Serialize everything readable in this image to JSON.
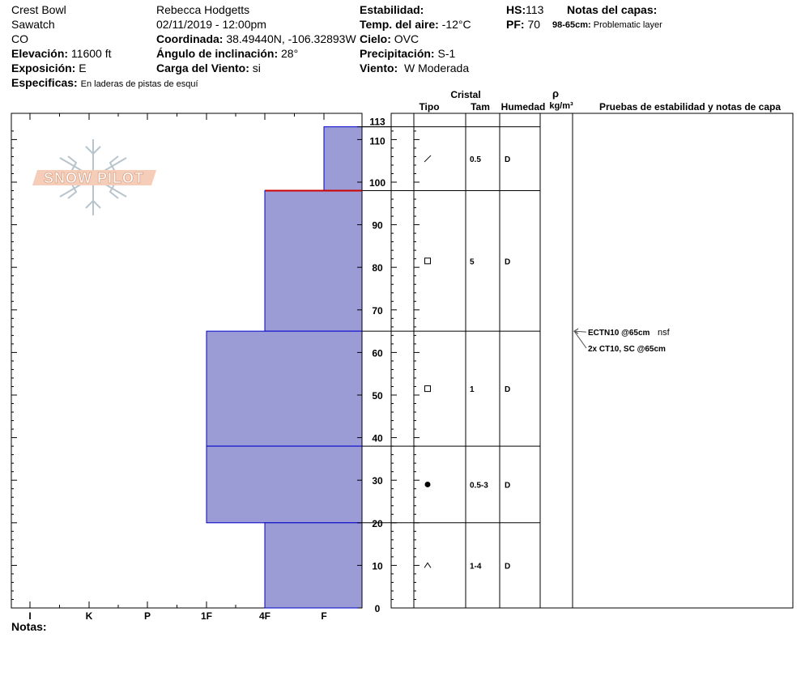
{
  "site": {
    "location": "Crest Bowl",
    "range": "Sawatch",
    "state": "CO",
    "elevation_label": "Elevación:",
    "elevation": "11600 ft",
    "aspect_label": "Exposición:",
    "aspect": "E",
    "specifics_label": "Especificas:",
    "specifics": "En laderas de pistas de esquí"
  },
  "observation": {
    "observer": "Rebecca Hodgetts",
    "datetime": "02/11/2019 - 12:00pm",
    "coord_label": "Coordinada:",
    "coord": "38.49440N, -106.32893W",
    "slope_label": "Ángulo de inclinación:",
    "slope": "28°",
    "wind_load_label": "Carga del Viento:",
    "wind_load": "si"
  },
  "conditions": {
    "stability_label": "Estabilidad:",
    "air_temp_label": "Temp. del aire:",
    "air_temp": "-12°C",
    "sky_label": "Cielo:",
    "sky": "OVC",
    "precip_label": "Precipitación:",
    "precip": "S-1",
    "wind_label": "Viento:",
    "wind": "W Moderada"
  },
  "depths": {
    "hs_label": "HS:",
    "hs": "113",
    "pf_label": "PF:",
    "pf": "70"
  },
  "layer_notes": {
    "label": "Notas del capas:",
    "range": "98-65cm:",
    "text": "Problematic layer"
  },
  "table_headers": {
    "crystal": "Cristal",
    "type": "Tipo",
    "size": "Tam",
    "moisture": "Humedad",
    "rho": "ρ",
    "density_unit": "kg/m³",
    "tests": "Pruebas de estabilidad y notas de capa"
  },
  "notes_label": "Notas:",
  "logo_text": "SNOW PILOT",
  "colors": {
    "layer_fill": "#9b9bd6",
    "layer_edge": "#0000cc",
    "critical_line": "#cc0000"
  },
  "chart_data": {
    "type": "bar",
    "orientation": "horizontal",
    "y_unit": "cm",
    "ylim": [
      0,
      113
    ],
    "y_ticks": [
      0,
      10,
      20,
      30,
      40,
      50,
      60,
      70,
      80,
      90,
      100,
      110,
      113
    ],
    "hardness_scale": [
      "I",
      "K",
      "P",
      "1F",
      "4F",
      "F"
    ],
    "layers": [
      {
        "top": 113,
        "bottom": 98,
        "hardness": "F",
        "crystal": "/",
        "size": "0.5",
        "moisture": "D"
      },
      {
        "top": 98,
        "bottom": 65,
        "hardness": "4F",
        "crystal": "□",
        "size": "5",
        "moisture": "D"
      },
      {
        "top": 65,
        "bottom": 38,
        "hardness": "1F",
        "crystal": "□",
        "size": "1",
        "moisture": "D"
      },
      {
        "top": 38,
        "bottom": 20,
        "hardness": "1F",
        "crystal": "●",
        "size": "0.5-3",
        "moisture": "D"
      },
      {
        "top": 20,
        "bottom": 0,
        "hardness": "4F",
        "crystal": "∧",
        "size": "1-4",
        "moisture": "D"
      }
    ],
    "critical_line_cm": 98,
    "tests": [
      {
        "depth": 65,
        "text": "ECTN10 @65cm",
        "note": "nsf"
      },
      {
        "depth": 65,
        "text": "2x CT10, SC @65cm",
        "note": ""
      }
    ]
  }
}
